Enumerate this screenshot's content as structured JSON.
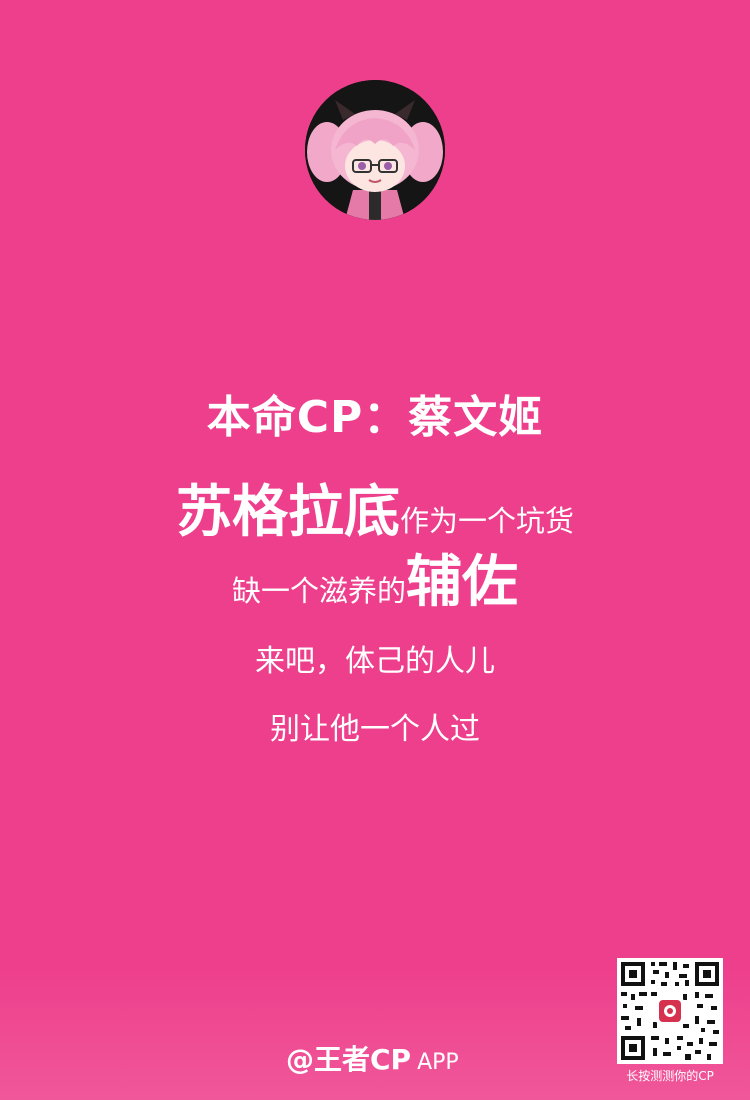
{
  "title": "本命CP：蔡文姬",
  "line1": {
    "strong": "苏格拉底",
    "normal": "作为一个坑货"
  },
  "line2": {
    "normal": "缺一个滋养的",
    "strong": "辅佐"
  },
  "line3": "来吧，体己的人儿",
  "line4": "别让他一个人过",
  "footer": {
    "at": "@王者CP",
    "app": "APP"
  },
  "qr_caption": "长按测测你的CP",
  "colors": {
    "background": "#ee3f8c",
    "text": "#ffffff"
  },
  "icons": {
    "avatar": "anime-character-avatar",
    "qr": "qr-code"
  }
}
